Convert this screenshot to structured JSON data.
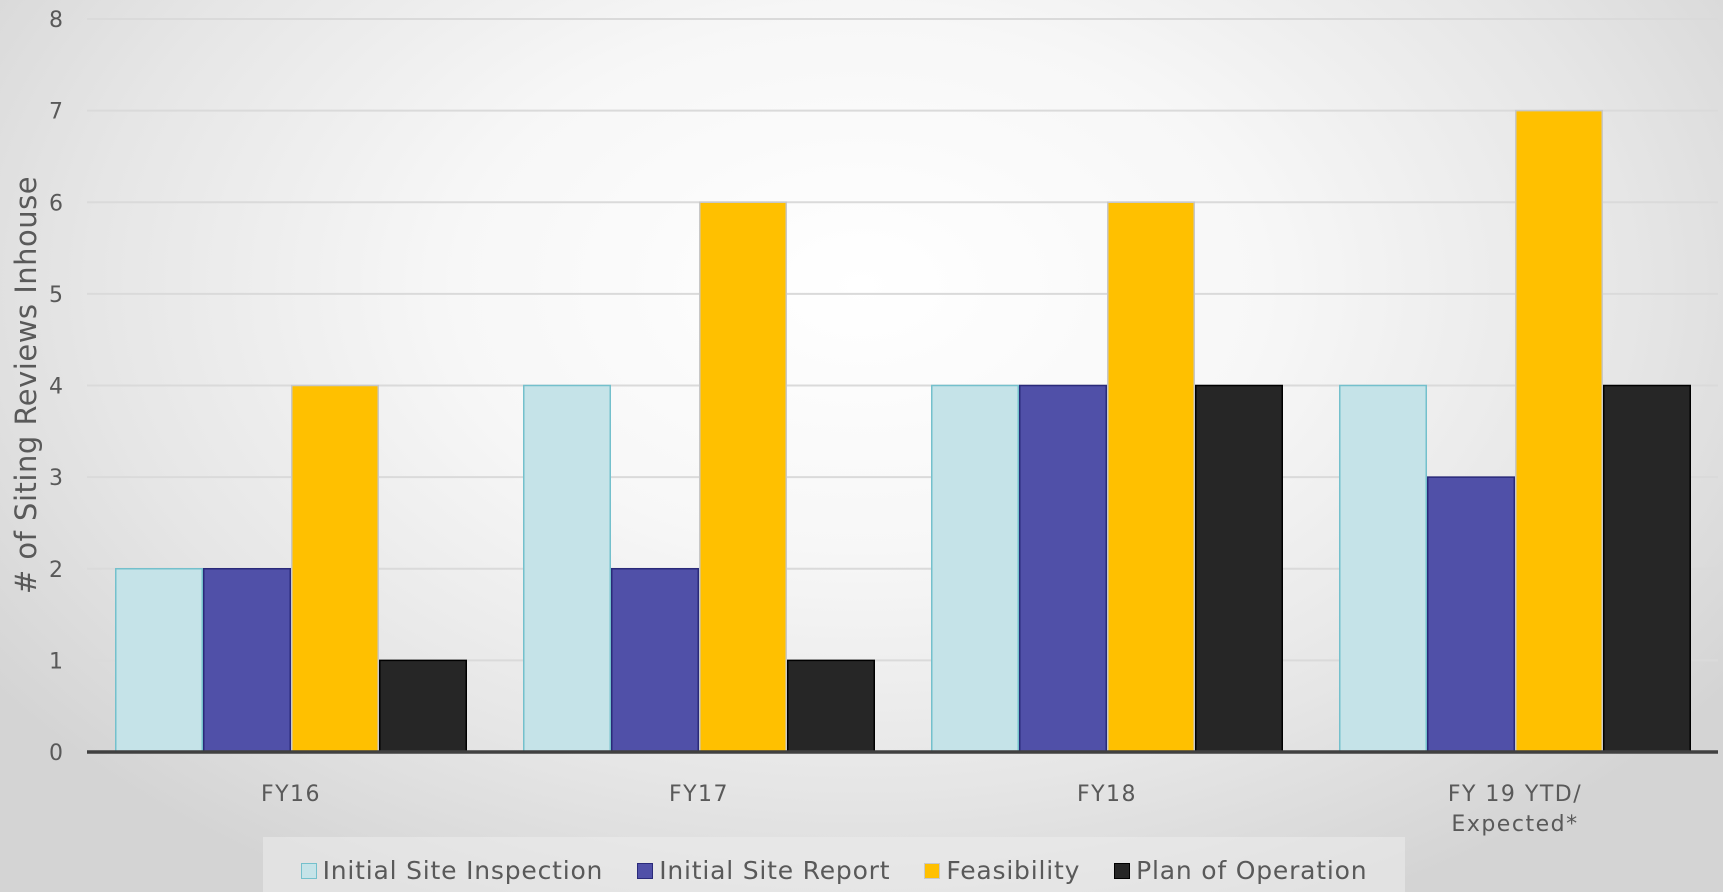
{
  "chart_data": {
    "type": "bar",
    "title": "",
    "xlabel": "",
    "ylabel": "# of Siting Reviews Inhouse",
    "categories": [
      "FY16",
      "FY17",
      "FY18",
      "FY 19 YTD/\nExpected*"
    ],
    "series": [
      {
        "name": "Initial Site Inspection",
        "values": [
          2,
          4,
          4,
          4
        ],
        "color": "#c5e3e8",
        "stroke": "#74c0cc"
      },
      {
        "name": "Initial Site Report",
        "values": [
          2,
          2,
          4,
          3
        ],
        "color": "#5050a8",
        "stroke": "#2a2a7a"
      },
      {
        "name": "Feasibility",
        "values": [
          4,
          6,
          6,
          7
        ],
        "color": "#ffc000",
        "stroke": "#c8c8c8"
      },
      {
        "name": "Plan of Operation",
        "values": [
          1,
          1,
          4,
          4
        ],
        "color": "#262626",
        "stroke": "#000000"
      }
    ],
    "ylim": [
      0,
      8
    ],
    "yticks": [
      0,
      1,
      2,
      3,
      4,
      5,
      6,
      7,
      8
    ],
    "grid": true,
    "legend": "bottom"
  }
}
